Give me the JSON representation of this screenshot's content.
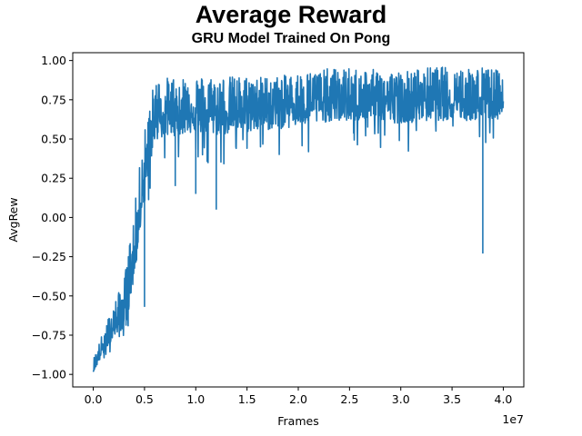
{
  "chart_data": {
    "type": "line",
    "title": "Average Reward",
    "subtitle": "GRU Model Trained On Pong",
    "xlabel": "Frames",
    "ylabel": "AvgRew",
    "x_offset_label": "1e7",
    "x_scale": 10000000,
    "xlim": [
      -0.2,
      4.2
    ],
    "ylim": [
      -1.08,
      1.05
    ],
    "xticks": [
      0.0,
      0.5,
      1.0,
      1.5,
      2.0,
      2.5,
      3.0,
      3.5,
      4.0
    ],
    "xtick_labels": [
      "0.0",
      "0.5",
      "1.0",
      "1.5",
      "2.0",
      "2.5",
      "3.0",
      "3.5",
      "4.0"
    ],
    "yticks": [
      -1.0,
      -0.75,
      -0.5,
      -0.25,
      0.0,
      0.25,
      0.5,
      0.75,
      1.0
    ],
    "ytick_labels": [
      "−1.00",
      "−0.75",
      "−0.50",
      "−0.25",
      "0.00",
      "0.25",
      "0.50",
      "0.75",
      "1.00"
    ],
    "grid": false,
    "line_color": "#1f77b4",
    "series": [
      {
        "x": [
          0.0,
          0.1,
          0.2,
          0.3,
          0.4,
          0.5,
          0.6,
          0.8,
          1.0,
          1.2,
          1.5,
          1.8,
          2.0,
          2.3,
          2.6,
          3.0,
          3.3,
          3.6,
          3.8,
          4.0
        ],
        "y": [
          -0.97,
          -0.82,
          -0.68,
          -0.6,
          -0.25,
          0.3,
          0.65,
          0.68,
          0.7,
          0.68,
          0.7,
          0.72,
          0.73,
          0.74,
          0.75,
          0.76,
          0.77,
          0.77,
          0.78,
          0.78
        ],
        "lower": [
          -1.0,
          -0.93,
          -0.85,
          -0.97,
          -0.55,
          -0.57,
          0.25,
          0.2,
          0.15,
          0.05,
          0.3,
          0.32,
          0.4,
          0.45,
          0.45,
          0.4,
          0.42,
          0.45,
          -0.23,
          0.6
        ],
        "upper": [
          -0.9,
          -0.72,
          -0.55,
          -0.4,
          0.05,
          0.58,
          0.88,
          0.9,
          0.9,
          0.9,
          0.9,
          0.9,
          0.92,
          0.95,
          0.95,
          0.93,
          0.96,
          0.96,
          0.96,
          0.93
        ]
      }
    ]
  }
}
